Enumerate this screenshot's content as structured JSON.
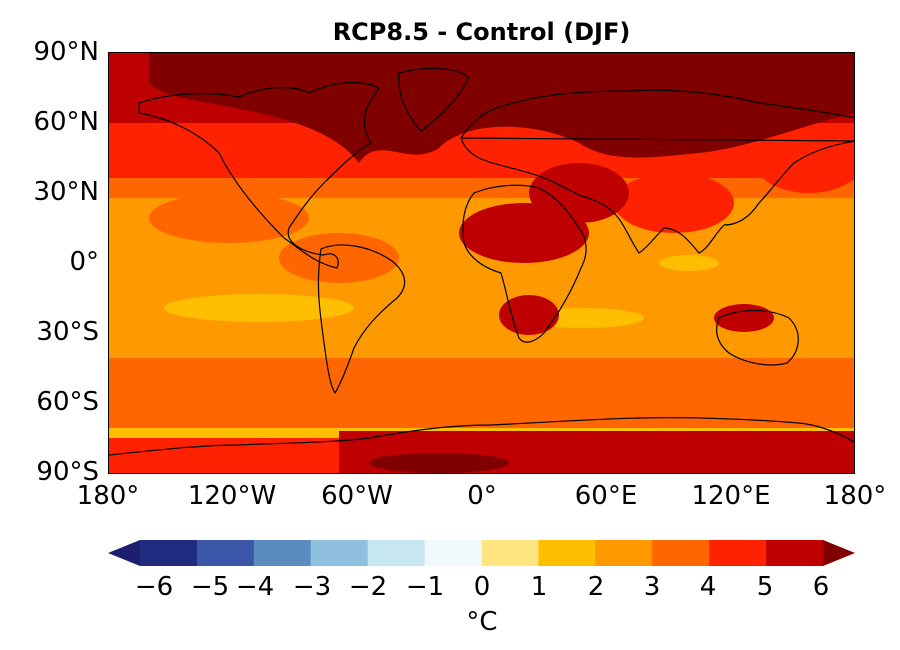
{
  "title": "RCP8.5 - Control (DJF)",
  "map": {
    "projection": "PlateCarree",
    "lat_labels": [
      "90°N",
      "60°N",
      "30°N",
      "0°",
      "30°S",
      "60°S",
      "90°S"
    ],
    "lon_labels": [
      "180°",
      "120°W",
      "60°W",
      "0°",
      "60°E",
      "120°E",
      "180°"
    ],
    "coastlines": true,
    "colors": {
      "level_3_4": "#ff6600",
      "level_4_5": "#ff2200",
      "level_5_6": "#bf0000",
      "level_gt6": "#800000",
      "level_2_3": "#ff9900",
      "level_1_2": "#ffbf00"
    }
  },
  "colorbar": {
    "ticks": [
      "−6",
      "−5",
      "−4",
      "−3",
      "−2",
      "−1",
      "0",
      "1",
      "2",
      "3",
      "4",
      "5",
      "6"
    ],
    "label": "°C",
    "extend": "both",
    "colors": [
      "#1d1f6e",
      "#202a7e",
      "#3b55a8",
      "#5b8cc0",
      "#8fc0dd",
      "#c6e6f0",
      "#f2f9fc",
      "#ffe680",
      "#ffbf00",
      "#ff9900",
      "#ff6600",
      "#ff2200",
      "#bf0000",
      "#800000"
    ]
  }
}
